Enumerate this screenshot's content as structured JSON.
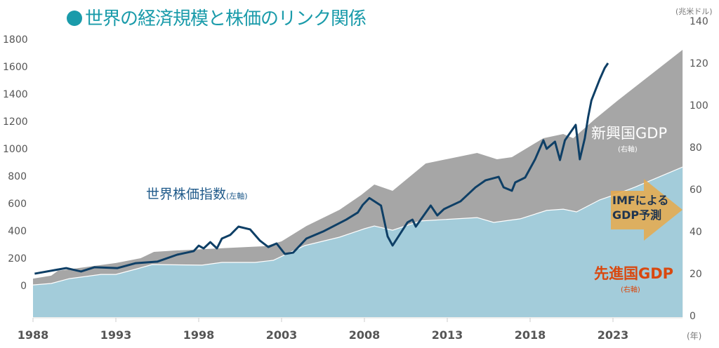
{
  "title": "世界の経済規模と株価のリンク関係",
  "annotations": {
    "stock_label": "世界株価指数",
    "stock_axis_note": "(左軸)",
    "emerging_label": "新興国GDP",
    "emerging_axis_note": "(右軸)",
    "advanced_label": "先進国GDP",
    "advanced_axis_note": "(右軸)",
    "forecast_line1": "IMFによる",
    "forecast_line2": "GDP予測"
  },
  "chart_data": {
    "type": "area",
    "title": "世界の経済規模と株価のリンク関係",
    "xlabel_unit": "(年)",
    "right_axis_unit": "(兆米ドル)",
    "x_ticks": [
      "1988",
      "1993",
      "1998",
      "2003",
      "2008",
      "2013",
      "2018",
      "2023"
    ],
    "left_ticks": [
      "0",
      "200",
      "400",
      "600",
      "800",
      "1000",
      "1200",
      "1400",
      "1600",
      "1800"
    ],
    "right_ticks": [
      "0",
      "20",
      "40",
      "60",
      "80",
      "100",
      "120",
      "140"
    ],
    "left_ylim": [
      0,
      1800
    ],
    "right_ylim": [
      0,
      140
    ],
    "xlim": [
      1988,
      2027.2
    ],
    "grid": false,
    "colors": {
      "advanced": "#A3CCDA",
      "emerging": "#A6A6A6",
      "stock": "#0E3F66",
      "forecast_arrow": "#E8A94A",
      "title": "#1A9BAA",
      "advanced_label": "#D9480F"
    },
    "series": [
      {
        "name": "先進国GDP",
        "axis": "right",
        "kind": "stacked-area",
        "x": [
          1988,
          1989.1,
          1990.2,
          1992.1,
          1993,
          1994.3,
          1995.2,
          1998.2,
          1999.4,
          2001.4,
          2002.5,
          2004.4,
          2006.5,
          2008,
          2008.6,
          2009.7,
          2011.4,
          2014.8,
          2015.8,
          2017.4,
          2019,
          2020,
          2020.8,
          2022.2,
          2023.3,
          2024.3,
          2027.2
        ],
        "values": [
          15.3,
          16,
          18.3,
          20.3,
          20.3,
          23,
          25,
          24.7,
          26,
          26,
          27,
          34,
          38,
          42,
          43.3,
          41.3,
          45.7,
          47.3,
          45,
          46.7,
          50.7,
          51.3,
          50,
          55.7,
          58.7,
          61.7,
          71.3
        ]
      },
      {
        "name": "新興国GDP",
        "axis": "right",
        "kind": "stacked-area-top (total)",
        "x": [
          1988,
          1989.1,
          1989.5,
          1993,
          1994.5,
          1995.3,
          1996.7,
          2000.1,
          2002,
          2003,
          2004.5,
          2006.5,
          2007.8,
          2008.6,
          2009.7,
          2011.7,
          2014.8,
          2016,
          2016.9,
          2018.8,
          2020,
          2020.6,
          2021.9,
          2023.3,
          2027.2
        ],
        "values": [
          18.3,
          19.7,
          22,
          25.7,
          28,
          31,
          31.7,
          33,
          33.7,
          36,
          43.3,
          51,
          58,
          63,
          60,
          73,
          78,
          75,
          76,
          85,
          87,
          85,
          94,
          103,
          127
        ]
      },
      {
        "name": "世界株価指数",
        "axis": "left",
        "kind": "line",
        "x": [
          1988.1,
          1989.3,
          1990,
          1990.9,
          1991.7,
          1993.1,
          1994.2,
          1995.5,
          1996.7,
          1997.7,
          1998,
          1998.3,
          1998.7,
          1999.1,
          1999.4,
          1999.9,
          2000.4,
          2001.1,
          2001.7,
          2002.2,
          2002.7,
          2003.2,
          2003.7,
          2004.5,
          2005.5,
          2006.9,
          2007.6,
          2007.9,
          2008.3,
          2009,
          2009.4,
          2009.7,
          2010.6,
          2010.9,
          2011.1,
          2012,
          2012.4,
          2012.8,
          2013.8,
          2014.7,
          2015.3,
          2016.1,
          2016.4,
          2016.9,
          2017.1,
          2017.7,
          2018.3,
          2018.8,
          2019,
          2019.5,
          2019.8,
          2020.1,
          2020.75,
          2021,
          2021.3,
          2021.5,
          2021.7,
          2022.2,
          2022.5,
          2022.7
        ],
        "values": [
          97,
          123,
          138,
          113,
          144,
          138,
          174,
          185,
          236,
          262,
          302,
          282,
          328,
          282,
          354,
          380,
          441,
          421,
          338,
          292,
          318,
          241,
          251,
          354,
          405,
          492,
          544,
          600,
          650,
          595,
          370,
          303,
          472,
          492,
          441,
          595,
          523,
          569,
          626,
          728,
          779,
          805,
          728,
          703,
          764,
          800,
          933,
          1072,
          1010,
          1062,
          928,
          1072,
          1185,
          933,
          1087,
          1241,
          1364,
          1518,
          1600,
          1636
        ]
      }
    ]
  }
}
